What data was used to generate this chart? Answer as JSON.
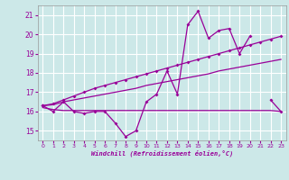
{
  "x": [
    0,
    1,
    2,
    3,
    4,
    5,
    6,
    7,
    8,
    9,
    10,
    11,
    12,
    13,
    14,
    15,
    16,
    17,
    18,
    19,
    20,
    21,
    22,
    23
  ],
  "line1": [
    16.3,
    16.0,
    16.5,
    16.0,
    15.9,
    16.0,
    16.0,
    15.4,
    14.7,
    15.0,
    16.5,
    16.9,
    18.1,
    16.9,
    20.5,
    21.2,
    19.8,
    20.2,
    20.3,
    19.0,
    19.9,
    null,
    16.6,
    16.0
  ],
  "line2_slope": [
    16.3,
    16.4,
    16.6,
    16.8,
    17.0,
    17.2,
    17.35,
    17.5,
    17.65,
    17.8,
    17.95,
    18.1,
    18.25,
    18.4,
    18.55,
    18.7,
    18.85,
    19.0,
    19.15,
    19.3,
    19.45,
    19.6,
    19.75,
    19.9
  ],
  "line3_slope": [
    16.3,
    16.35,
    16.5,
    16.6,
    16.7,
    16.8,
    16.9,
    17.0,
    17.1,
    17.2,
    17.35,
    17.45,
    17.55,
    17.65,
    17.75,
    17.85,
    17.95,
    18.1,
    18.2,
    18.3,
    18.4,
    18.5,
    18.6,
    18.7
  ],
  "line4_flat": [
    16.2,
    16.1,
    16.05,
    16.05,
    16.05,
    16.05,
    16.05,
    16.05,
    16.05,
    16.05,
    16.05,
    16.05,
    16.05,
    16.05,
    16.05,
    16.05,
    16.05,
    16.05,
    16.05,
    16.05,
    16.05,
    16.05,
    16.05,
    16.0
  ],
  "line_color": "#990099",
  "bg_color": "#cce8e8",
  "grid_color": "#ffffff",
  "xlabel": "Windchill (Refroidissement éolien,°C)",
  "ylabel_ticks": [
    15,
    16,
    17,
    18,
    19,
    20,
    21
  ],
  "xlim": [
    -0.5,
    23.5
  ],
  "ylim": [
    14.5,
    21.5
  ],
  "xticks": [
    0,
    1,
    2,
    3,
    4,
    5,
    6,
    7,
    8,
    9,
    10,
    11,
    12,
    13,
    14,
    15,
    16,
    17,
    18,
    19,
    20,
    21,
    22,
    23
  ]
}
